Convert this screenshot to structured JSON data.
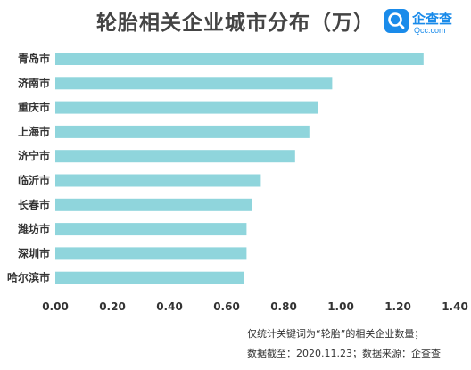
{
  "header": {
    "title": "轮胎相关企业城市分布（万）"
  },
  "logo": {
    "name": "企查查",
    "domain": "Qcc.com",
    "color": "#1a8bea",
    "icon": "qcc-magnifier-icon"
  },
  "notes": {
    "line1": "仅统计关键词为“轮胎”的相关企业数量；",
    "line2": "数据截至：2020.11.23；数据来源：企查查"
  },
  "chart_data": {
    "type": "bar",
    "orientation": "horizontal",
    "title": "轮胎相关企业城市分布（万）",
    "categories": [
      "青岛市",
      "济南市",
      "重庆市",
      "上海市",
      "济宁市",
      "临沂市",
      "长春市",
      "潍坊市",
      "深圳市",
      "哈尔滨市"
    ],
    "values": [
      1.29,
      0.97,
      0.92,
      0.89,
      0.84,
      0.72,
      0.69,
      0.67,
      0.67,
      0.66
    ],
    "xlim": [
      0,
      1.4
    ],
    "xticks": [
      "0.00",
      "0.20",
      "0.40",
      "0.60",
      "0.80",
      "1.00",
      "1.20",
      "1.40"
    ],
    "bar_color": "#8fd5dc",
    "grid": false
  }
}
